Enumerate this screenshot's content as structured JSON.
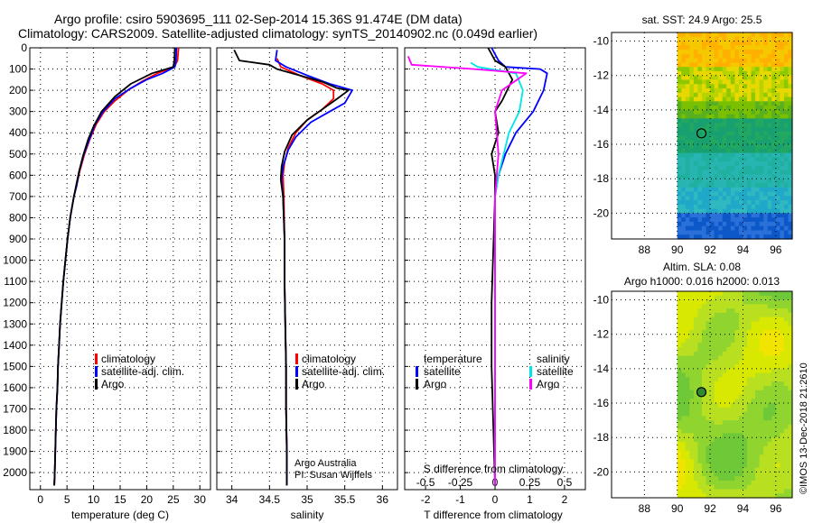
{
  "title_line1": "Argo profile: csiro 5903695_111 02-Sep-2014 15.36S 91.474E (DM data)",
  "title_line2": "Climatology: CARS2009. Satellite-adjusted climatology: synTS_20140902.nc (0.049d earlier)",
  "colors": {
    "climatology": "#ff0000",
    "satellite": "#0000ff",
    "argo": "#000000",
    "sat_salinity": "#00e5e5",
    "argo_salinity": "#ff00ff"
  },
  "chart_data": [
    {
      "type": "line",
      "id": "temperature",
      "xlabel": "temperature (deg C)",
      "ylabel": "",
      "xlim": [
        -2,
        32
      ],
      "ylim": [
        2080,
        0
      ],
      "xticks": [
        "0",
        "5",
        "10",
        "15",
        "20",
        "25",
        "30"
      ],
      "xtick_values": [
        0,
        5,
        10,
        15,
        20,
        25,
        30
      ],
      "yticks": [
        "0",
        "100",
        "200",
        "300",
        "400",
        "500",
        "600",
        "700",
        "800",
        "900",
        "1000",
        "1100",
        "1200",
        "1300",
        "1400",
        "1500",
        "1600",
        "1700",
        "1800",
        "1900",
        "2000"
      ],
      "ytick_values": [
        0,
        100,
        200,
        300,
        400,
        500,
        600,
        700,
        800,
        900,
        1000,
        1100,
        1200,
        1300,
        1400,
        1500,
        1600,
        1700,
        1800,
        1900,
        2000
      ],
      "legend": [
        "climatology",
        "satellite-adj. clim.",
        "Argo"
      ],
      "series": [
        {
          "name": "climatology",
          "color": "#ff0000",
          "points": [
            [
              26,
              0
            ],
            [
              25.8,
              60
            ],
            [
              25.2,
              90
            ],
            [
              22,
              120
            ],
            [
              19,
              160
            ],
            [
              16.5,
              200
            ],
            [
              14,
              250
            ],
            [
              12,
              300
            ],
            [
              10.5,
              360
            ],
            [
              9.3,
              430
            ],
            [
              8.3,
              500
            ],
            [
              7.4,
              580
            ],
            [
              6.8,
              650
            ],
            [
              6.3,
              700
            ],
            [
              5.6,
              800
            ],
            [
              5.1,
              900
            ],
            [
              4.7,
              1000
            ],
            [
              4.3,
              1100
            ],
            [
              4,
              1200
            ],
            [
              3.7,
              1300
            ],
            [
              3.5,
              1400
            ],
            [
              3.3,
              1500
            ],
            [
              3.2,
              1600
            ],
            [
              3,
              1700
            ],
            [
              2.9,
              1800
            ],
            [
              2.8,
              1900
            ],
            [
              2.7,
              2000
            ],
            [
              2.6,
              2060
            ]
          ]
        },
        {
          "name": "satellite-adj. clim.",
          "color": "#0000ff",
          "points": [
            [
              25.6,
              0
            ],
            [
              25.5,
              60
            ],
            [
              25.3,
              90
            ],
            [
              23,
              120
            ],
            [
              20,
              150
            ],
            [
              17,
              190
            ],
            [
              14,
              240
            ],
            [
              11.8,
              300
            ],
            [
              10.3,
              360
            ],
            [
              9.2,
              430
            ],
            [
              8.2,
              500
            ],
            [
              7.3,
              580
            ],
            [
              6.8,
              650
            ],
            [
              6.3,
              700
            ],
            [
              5.6,
              800
            ],
            [
              5.1,
              900
            ],
            [
              4.7,
              1000
            ],
            [
              4.3,
              1100
            ],
            [
              4,
              1200
            ],
            [
              3.7,
              1300
            ],
            [
              3.5,
              1400
            ],
            [
              3.3,
              1500
            ],
            [
              3.2,
              1600
            ],
            [
              3,
              1700
            ],
            [
              2.9,
              1800
            ],
            [
              2.8,
              1900
            ],
            [
              2.7,
              2000
            ],
            [
              2.6,
              2060
            ]
          ]
        },
        {
          "name": "Argo",
          "color": "#000000",
          "points": [
            [
              25.3,
              0
            ],
            [
              25.2,
              60
            ],
            [
              25,
              90
            ],
            [
              21,
              120
            ],
            [
              17,
              170
            ],
            [
              14,
              230
            ],
            [
              11.5,
              300
            ],
            [
              10,
              370
            ],
            [
              9,
              430
            ],
            [
              8,
              510
            ],
            [
              7.2,
              590
            ],
            [
              6.7,
              650
            ],
            [
              6.3,
              700
            ],
            [
              5.6,
              800
            ],
            [
              5.1,
              900
            ],
            [
              4.7,
              1000
            ],
            [
              4.3,
              1100
            ],
            [
              4,
              1200
            ],
            [
              3.7,
              1300
            ],
            [
              3.5,
              1400
            ],
            [
              3.3,
              1500
            ],
            [
              3.2,
              1600
            ],
            [
              3,
              1700
            ],
            [
              2.9,
              1800
            ],
            [
              2.8,
              1900
            ],
            [
              2.7,
              2000
            ],
            [
              2.6,
              2060
            ]
          ]
        }
      ]
    },
    {
      "type": "line",
      "id": "salinity",
      "xlabel": "salinity",
      "xlim": [
        33.8,
        36.2
      ],
      "ylim": [
        2080,
        0
      ],
      "xticks": [
        "34",
        "34.5",
        "35",
        "35.5",
        "36"
      ],
      "xtick_values": [
        34,
        34.5,
        35,
        35.5,
        36
      ],
      "legend": [
        "climatology",
        "satellite-adj. clim.",
        "Argo"
      ],
      "annotation": [
        "Argo Australia",
        "PI: Susan Wijffels"
      ],
      "series": [
        {
          "name": "climatology",
          "color": "#ff0000",
          "points": [
            [
              34.6,
              50
            ],
            [
              34.65,
              90
            ],
            [
              34.9,
              130
            ],
            [
              35.2,
              170
            ],
            [
              35.35,
              200
            ],
            [
              35.35,
              240
            ],
            [
              35.2,
              290
            ],
            [
              35,
              340
            ],
            [
              34.85,
              400
            ],
            [
              34.75,
              470
            ],
            [
              34.7,
              540
            ],
            [
              34.68,
              600
            ],
            [
              34.69,
              700
            ],
            [
              34.7,
              900
            ],
            [
              34.7,
              1100
            ],
            [
              34.71,
              1300
            ],
            [
              34.72,
              1500
            ],
            [
              34.72,
              1700
            ],
            [
              34.73,
              1900
            ],
            [
              34.73,
              2060
            ]
          ]
        },
        {
          "name": "satellite-adj. clim.",
          "color": "#0000ff",
          "points": [
            [
              34.6,
              10
            ],
            [
              34.58,
              60
            ],
            [
              34.72,
              90
            ],
            [
              35,
              130
            ],
            [
              35.3,
              170
            ],
            [
              35.6,
              200
            ],
            [
              35.5,
              260
            ],
            [
              35.3,
              300
            ],
            [
              35.05,
              350
            ],
            [
              34.85,
              420
            ],
            [
              34.75,
              480
            ],
            [
              34.68,
              560
            ],
            [
              34.66,
              620
            ],
            [
              34.68,
              700
            ],
            [
              34.7,
              900
            ],
            [
              34.7,
              1100
            ],
            [
              34.71,
              1300
            ],
            [
              34.72,
              1500
            ],
            [
              34.72,
              1700
            ],
            [
              34.73,
              1900
            ],
            [
              34.73,
              2060
            ]
          ]
        },
        {
          "name": "Argo",
          "color": "#000000",
          "points": [
            [
              34.03,
              10
            ],
            [
              34.1,
              60
            ],
            [
              34.5,
              80
            ],
            [
              34.6,
              100
            ],
            [
              34.9,
              130
            ],
            [
              35.2,
              160
            ],
            [
              35.4,
              190
            ],
            [
              35.55,
              200
            ],
            [
              35.4,
              240
            ],
            [
              35.2,
              290
            ],
            [
              35,
              340
            ],
            [
              34.8,
              410
            ],
            [
              34.7,
              490
            ],
            [
              34.66,
              560
            ],
            [
              34.65,
              620
            ],
            [
              34.68,
              700
            ],
            [
              34.7,
              900
            ],
            [
              34.7,
              1100
            ],
            [
              34.71,
              1300
            ],
            [
              34.72,
              1500
            ],
            [
              34.72,
              1700
            ],
            [
              34.73,
              1900
            ],
            [
              34.73,
              2060
            ]
          ]
        }
      ]
    },
    {
      "type": "line",
      "id": "differences",
      "xlabel": "T difference from climatology",
      "top_label": "S difference from climatology",
      "xlim": [
        -2.6,
        2.6
      ],
      "ylim": [
        2080,
        0
      ],
      "xticks": [
        "-2",
        "-1",
        "0",
        "1",
        "2"
      ],
      "xtick_values": [
        -2,
        -1,
        0,
        1,
        2
      ],
      "sticks": [
        "-0.5",
        "-0.25",
        "0",
        "0.25",
        "0.5"
      ],
      "stick_values": [
        -2,
        -1,
        0,
        1,
        2
      ],
      "legend_left_title": "temperature",
      "legend_right_title": "salinity",
      "legend_left": [
        "satellite",
        "Argo"
      ],
      "legend_right": [
        "satellite",
        "Argo"
      ],
      "series": [
        {
          "name": "T satellite",
          "color": "#0000ff",
          "points": [
            [
              -0.1,
              0
            ],
            [
              0.1,
              60
            ],
            [
              0.3,
              90
            ],
            [
              1.3,
              100
            ],
            [
              1.5,
              120
            ],
            [
              1.4,
              200
            ],
            [
              1.1,
              300
            ],
            [
              0.6,
              400
            ],
            [
              0.3,
              500
            ],
            [
              0.1,
              600
            ],
            [
              0,
              700
            ],
            [
              0,
              1000
            ],
            [
              0,
              1500
            ],
            [
              0,
              2060
            ]
          ]
        },
        {
          "name": "T Argo",
          "color": "#000000",
          "points": [
            [
              -0.2,
              0
            ],
            [
              0,
              60
            ],
            [
              0.3,
              90
            ],
            [
              0.5,
              150
            ],
            [
              0.2,
              250
            ],
            [
              0,
              300
            ],
            [
              0.1,
              400
            ],
            [
              -0.1,
              500
            ],
            [
              0,
              600
            ],
            [
              0,
              700
            ],
            [
              -0.1,
              1200
            ],
            [
              -0.1,
              1500
            ],
            [
              0,
              2060
            ]
          ]
        },
        {
          "name": "S satellite",
          "color": "#00e5e5",
          "points": [
            [
              -0.7,
              70
            ],
            [
              -0.5,
              90
            ],
            [
              0.6,
              120
            ],
            [
              0.8,
              200
            ],
            [
              0.7,
              300
            ],
            [
              0.4,
              400
            ],
            [
              0.1,
              600
            ],
            [
              0,
              700
            ],
            [
              0,
              1000
            ],
            [
              0,
              1500
            ],
            [
              0,
              2060
            ]
          ]
        },
        {
          "name": "S Argo",
          "color": "#ff00ff",
          "points": [
            [
              -2.5,
              40
            ],
            [
              -2.4,
              80
            ],
            [
              -0.6,
              100
            ],
            [
              0.9,
              120
            ],
            [
              0.2,
              200
            ],
            [
              0,
              300
            ],
            [
              0.1,
              500
            ],
            [
              0,
              700
            ],
            [
              0,
              1000
            ],
            [
              0,
              1500
            ],
            [
              0,
              2060
            ]
          ]
        }
      ]
    },
    {
      "type": "heatmap",
      "id": "sst_map",
      "title": "sat. SST: 24.9 Argo: 25.5",
      "xlim": [
        86,
        97
      ],
      "ylim": [
        -21.5,
        -9.5
      ],
      "xticks": [
        "88",
        "90",
        "92",
        "94",
        "96"
      ],
      "xtick_values": [
        88,
        90,
        92,
        94,
        96
      ],
      "yticks": [
        "-10",
        "-12",
        "-14",
        "-16",
        "-18",
        "-20"
      ],
      "ytick_values": [
        -10,
        -12,
        -14,
        -16,
        -18,
        -20
      ],
      "marker": [
        91.474,
        -15.36
      ]
    },
    {
      "type": "heatmap",
      "id": "sla_map",
      "title_line1": "Altim. SLA: 0.08",
      "title_line2": "Argo h1000: 0.016 h2000: 0.013",
      "xlim": [
        86,
        97
      ],
      "ylim": [
        -21.5,
        -9.5
      ],
      "xticks": [
        "88",
        "90",
        "92",
        "94",
        "96"
      ],
      "xtick_values": [
        88,
        90,
        92,
        94,
        96
      ],
      "yticks": [
        "-10",
        "-12",
        "-14",
        "-16",
        "-18",
        "-20"
      ],
      "ytick_values": [
        -10,
        -12,
        -14,
        -16,
        -18,
        -20
      ],
      "marker": [
        91.474,
        -15.36
      ]
    }
  ],
  "credit": "©IMOS 13-Dec-2018 21:2610"
}
